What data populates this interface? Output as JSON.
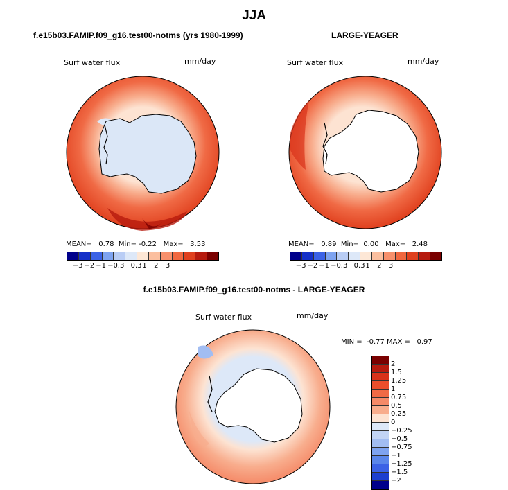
{
  "page": {
    "title": "JJA"
  },
  "panels": [
    {
      "header": "f.e15b03.FAMIP.f09_g16.test00-notms (yrs 1980-1999)",
      "variable": "Surf water flux",
      "units": "mm/day",
      "stats": {
        "mean_label": "MEAN=",
        "mean": "0.78",
        "min_label": "Min=",
        "min": "-0.22",
        "max_label": "Max=",
        "max": "3.53"
      }
    },
    {
      "header": "LARGE-YEAGER",
      "variable": "Surf water flux",
      "units": "mm/day",
      "stats": {
        "mean_label": "MEAN=",
        "mean": "0.89",
        "min_label": "Min=",
        "min": "0.00",
        "max_label": "Max=",
        "max": "2.48"
      }
    }
  ],
  "diff_panel": {
    "header": "f.e15b03.FAMIP.f09_g16.test00-notms - LARGE-YEAGER",
    "variable": "Surf water flux",
    "units": "mm/day",
    "stats": {
      "min_label": "MIN =",
      "min": "-0.77",
      "max_label": "MAX =",
      "max": "0.97"
    }
  },
  "horizontal_colorbar": {
    "ticks": [
      "−3",
      "−2",
      "−1",
      "−0.3",
      "0.3",
      "1",
      "2",
      "3"
    ],
    "colors": [
      "#00008b",
      "#1530c8",
      "#3b62e6",
      "#7ea3f0",
      "#b9cdf5",
      "#dde8f8",
      "#fde7d6",
      "#fbbf9f",
      "#f7906c",
      "#f0673f",
      "#e0401e",
      "#b61a0e",
      "#7a0000"
    ]
  },
  "vertical_colorbar": {
    "labels": [
      "2",
      "1.5",
      "1.25",
      "1",
      "0.75",
      "0.5",
      "0.25",
      "0",
      "−0.25",
      "−0.5",
      "−0.75",
      "−1",
      "−1.25",
      "−1.5",
      "−2"
    ],
    "colors": [
      "#7a0000",
      "#b61a0e",
      "#d8321a",
      "#ea4e2c",
      "#f06a45",
      "#f58a68",
      "#f8ad8d",
      "#fde3d2",
      "#dde8f8",
      "#c2d4f5",
      "#a2bdf2",
      "#7ea3f0",
      "#5a86ea",
      "#3b62e6",
      "#1d3fcf",
      "#00008b"
    ]
  },
  "legend_colors": {
    "land": "#ffffff",
    "sea_ice_panel1": "#dbe7f7",
    "coast": "#000000"
  }
}
